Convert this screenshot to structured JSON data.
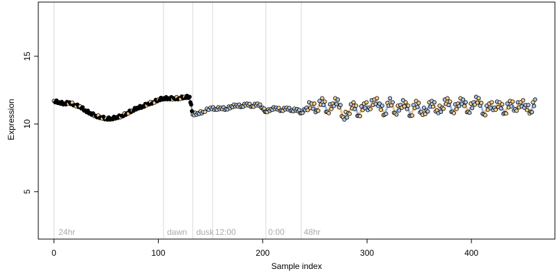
{
  "chart_data": {
    "type": "scatter",
    "title": "",
    "xlabel": "Sample index",
    "ylabel": "Expression",
    "xlim": [
      -15,
      480
    ],
    "ylim": [
      1.5,
      19
    ],
    "xticks": [
      0,
      100,
      200,
      300,
      400
    ],
    "yticks": [
      5,
      10,
      15
    ],
    "grid": false,
    "legend": "none",
    "vlines": [
      0,
      105,
      133,
      152,
      203,
      237
    ],
    "annotations": [
      {
        "x": 3,
        "text": "24hr"
      },
      {
        "x": 107,
        "text": "dawn"
      },
      {
        "x": 135,
        "text": "dusk"
      },
      {
        "x": 153,
        "text": "12:00"
      },
      {
        "x": 204,
        "text": "0:00"
      },
      {
        "x": 238,
        "text": "48hr"
      }
    ],
    "colors": {
      "dark_point": "#000000",
      "light_point": "#f5c98a",
      "blue_point": "#a8c4e8",
      "blue_line": "#9bb8dc",
      "orange_line": "#e8c08a",
      "black_line": "#000000",
      "vline": "#d9d9d9",
      "annotation": "#aaaaaa"
    },
    "series": [
      {
        "values": [
          [
            0,
            11.7
          ],
          [
            5,
            11.6
          ],
          [
            10,
            11.5
          ],
          [
            15,
            11.6
          ],
          [
            20,
            11.4
          ],
          [
            25,
            11.3
          ],
          [
            30,
            11.0
          ],
          [
            35,
            10.8
          ],
          [
            40,
            10.6
          ],
          [
            45,
            10.5
          ],
          [
            50,
            10.4
          ],
          [
            55,
            10.4
          ],
          [
            60,
            10.5
          ],
          [
            65,
            10.6
          ],
          [
            70,
            10.8
          ],
          [
            75,
            11.0
          ],
          [
            80,
            11.2
          ],
          [
            85,
            11.3
          ],
          [
            90,
            11.5
          ],
          [
            95,
            11.6
          ],
          [
            100,
            11.8
          ],
          [
            105,
            11.9
          ],
          [
            110,
            11.9
          ],
          [
            115,
            11.9
          ],
          [
            120,
            11.9
          ],
          [
            125,
            12.0
          ],
          [
            130,
            12.0
          ],
          [
            133,
            10.7
          ],
          [
            138,
            10.8
          ],
          [
            143,
            10.9
          ],
          [
            150,
            11.2
          ],
          [
            155,
            11.1
          ],
          [
            160,
            11.2
          ],
          [
            165,
            11.1
          ],
          [
            170,
            11.3
          ],
          [
            175,
            11.4
          ],
          [
            180,
            11.3
          ],
          [
            185,
            11.5
          ],
          [
            190,
            11.3
          ],
          [
            195,
            11.5
          ],
          [
            200,
            11.2
          ],
          [
            203,
            10.9
          ],
          [
            208,
            11.1
          ],
          [
            213,
            11.2
          ],
          [
            218,
            11.0
          ],
          [
            223,
            11.2
          ],
          [
            228,
            11.0
          ],
          [
            233,
            11.1
          ],
          [
            237,
            10.8
          ],
          [
            242,
            11.2
          ],
          [
            247,
            11.5
          ],
          [
            252,
            11.0
          ],
          [
            257,
            11.9
          ],
          [
            262,
            10.9
          ],
          [
            267,
            11.5
          ],
          [
            272,
            11.8
          ],
          [
            277,
            10.5
          ],
          [
            282,
            10.8
          ],
          [
            287,
            11.6
          ],
          [
            292,
            10.6
          ],
          [
            297,
            11.5
          ],
          [
            302,
            11.2
          ],
          [
            307,
            11.8
          ],
          [
            312,
            11.5
          ],
          [
            317,
            10.7
          ],
          [
            322,
            11.9
          ],
          [
            327,
            10.8
          ],
          [
            332,
            11.4
          ],
          [
            337,
            11.6
          ],
          [
            342,
            10.6
          ],
          [
            347,
            11.7
          ],
          [
            352,
            10.9
          ],
          [
            357,
            11.0
          ],
          [
            362,
            11.7
          ],
          [
            367,
            11.0
          ],
          [
            372,
            11.2
          ],
          [
            377,
            11.9
          ],
          [
            382,
            10.9
          ],
          [
            387,
            11.5
          ],
          [
            392,
            11.8
          ],
          [
            397,
            10.9
          ],
          [
            402,
            11.6
          ],
          [
            407,
            11.9
          ],
          [
            412,
            10.7
          ],
          [
            417,
            11.5
          ],
          [
            422,
            11.2
          ],
          [
            427,
            11.6
          ],
          [
            432,
            10.8
          ],
          [
            437,
            11.7
          ],
          [
            442,
            11.1
          ],
          [
            447,
            11.6
          ],
          [
            452,
            11.4
          ],
          [
            457,
            10.9
          ],
          [
            461,
            11.8
          ]
        ]
      }
    ]
  }
}
